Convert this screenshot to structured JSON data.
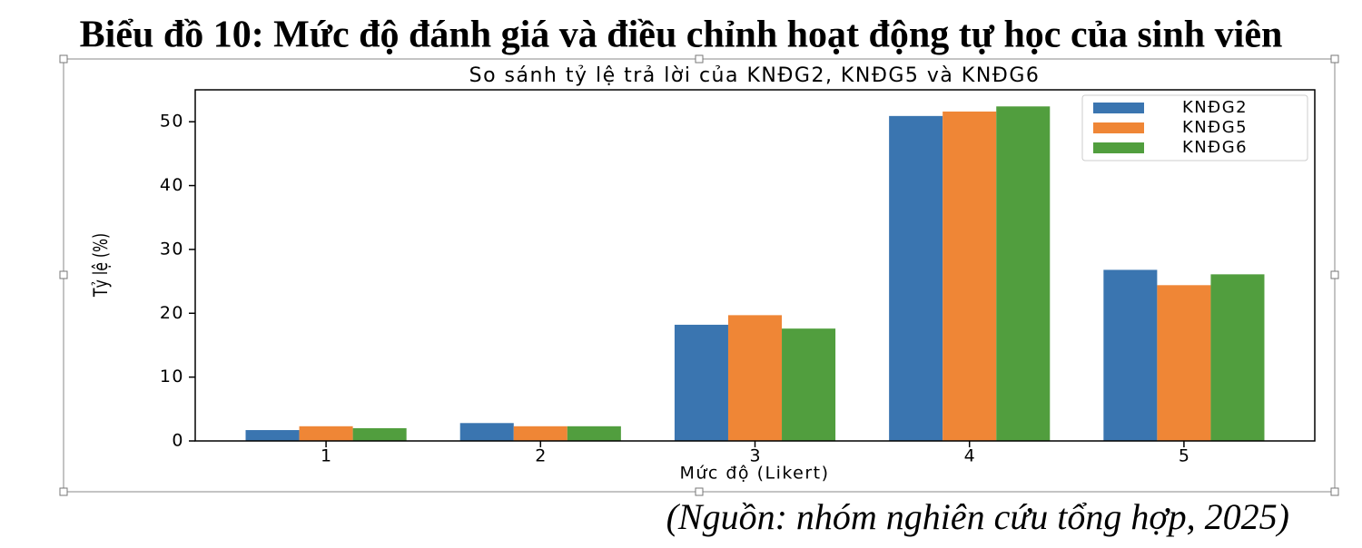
{
  "heading": "Biểu đồ 10: Mức độ đánh giá và điều chỉnh hoạt động tự học của sinh viên",
  "source": "(Nguồn: nhóm nghiên cứu tổng hợp, 2025)",
  "chart_data": {
    "type": "bar",
    "title": "So sánh tỷ lệ trả lời của KNĐG2, KNĐG5 và KNĐG6",
    "x_label": "Mức độ (Likert)",
    "y_label": "Tỷ lệ (%)",
    "categories": [
      "1",
      "2",
      "3",
      "4",
      "5"
    ],
    "series": [
      {
        "name": "KNĐG2",
        "color": "#3a75b0",
        "values": [
          1.7,
          2.8,
          18.2,
          50.9,
          26.8
        ]
      },
      {
        "name": "KNĐG5",
        "color": "#ef8636",
        "values": [
          2.3,
          2.3,
          19.7,
          51.6,
          24.4
        ]
      },
      {
        "name": "KNĐG6",
        "color": "#519e3e",
        "values": [
          2.0,
          2.3,
          17.6,
          52.4,
          26.1
        ]
      }
    ],
    "ylim": [
      0,
      55
    ],
    "yticks": [
      0,
      10,
      20,
      30,
      40,
      50
    ],
    "grid": false,
    "legend": "upper right"
  }
}
